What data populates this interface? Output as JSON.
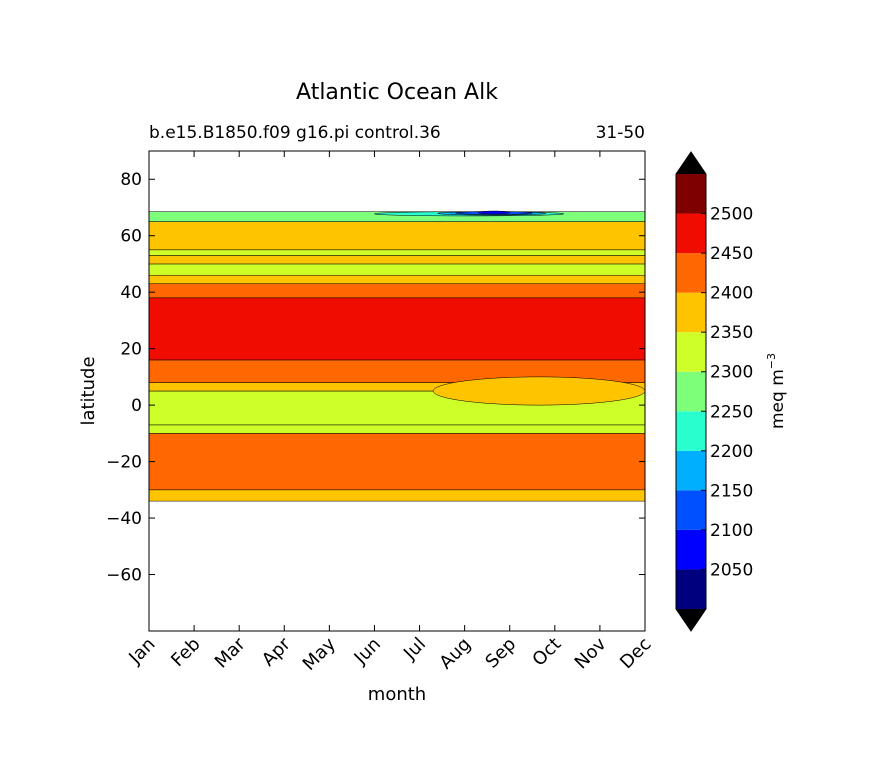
{
  "chart_data": {
    "type": "heatmap",
    "title": "Atlantic Ocean Alk",
    "subtitle_left": "b.e15.B1850.f09 g16.pi control.36",
    "subtitle_right": "31-50",
    "xlabel": "month",
    "ylabel": "latitude",
    "x_ticks": [
      "Jan",
      "Feb",
      "Mar",
      "Apr",
      "May",
      "Jun",
      "Jul",
      "Aug",
      "Sep",
      "Oct",
      "Nov",
      "Dec"
    ],
    "ylim": [
      -80,
      90
    ],
    "y_ticks": [
      80,
      60,
      40,
      20,
      0,
      -20,
      -40,
      -60
    ],
    "y_tick_labels": [
      "80",
      "60",
      "40",
      "20",
      "0",
      "−20",
      "−40",
      "−60"
    ],
    "colorbar": {
      "label_base": "meq m",
      "label_exp": "−3",
      "levels": [
        2000,
        2050,
        2100,
        2150,
        2200,
        2250,
        2300,
        2350,
        2400,
        2450,
        2500,
        2550
      ],
      "tick_values": [
        2050,
        2100,
        2150,
        2200,
        2250,
        2300,
        2350,
        2400,
        2450,
        2500
      ],
      "tick_labels": [
        "2050",
        "2100",
        "2150",
        "2200",
        "2250",
        "2300",
        "2350",
        "2400",
        "2450",
        "2500"
      ],
      "colors": [
        "#00007f",
        "#0000ff",
        "#0050ff",
        "#00b0ff",
        "#29ffce",
        "#7dff7a",
        "#ceff29",
        "#ffc400",
        "#ff6800",
        "#f10c00",
        "#7f0000"
      ],
      "extend_color": "#000000"
    },
    "bands": [
      {
        "lat_min": -34,
        "lat_max": -30,
        "value": 2375
      },
      {
        "lat_min": -30,
        "lat_max": -10,
        "value": 2425
      },
      {
        "lat_min": -10,
        "lat_max": -7,
        "value": 2325
      },
      {
        "lat_min": -7,
        "lat_max": 5,
        "value": 2325
      },
      {
        "lat_min": 5,
        "lat_max": 8,
        "value": 2375
      },
      {
        "lat_min": 8,
        "lat_max": 16,
        "value": 2425
      },
      {
        "lat_min": 16,
        "lat_max": 38,
        "value": 2475
      },
      {
        "lat_min": 38,
        "lat_max": 43,
        "value": 2425
      },
      {
        "lat_min": 43,
        "lat_max": 46,
        "value": 2375
      },
      {
        "lat_min": 46,
        "lat_max": 50,
        "value": 2325
      },
      {
        "lat_min": 50,
        "lat_max": 53,
        "value": 2375
      },
      {
        "lat_min": 53,
        "lat_max": 55,
        "value": 2325
      },
      {
        "lat_min": 55,
        "lat_max": 65,
        "value": 2375
      },
      {
        "lat_min": 65,
        "lat_max": 68.5,
        "value": 2275
      }
    ],
    "features": [
      {
        "month_start": 6.3,
        "month_end": 11,
        "lat_min": 0,
        "lat_max": 10,
        "value": 2375
      },
      {
        "month_start": 5,
        "month_end": 9.2,
        "lat_min": 67,
        "lat_max": 68.5,
        "value": 2225
      },
      {
        "month_start": 6.4,
        "month_end": 8.8,
        "lat_min": 67.3,
        "lat_max": 68.5,
        "value": 2175
      },
      {
        "month_start": 6.8,
        "month_end": 8.5,
        "lat_min": 67.6,
        "lat_max": 68.5,
        "value": 2125
      },
      {
        "month_start": 7.3,
        "month_end": 8.0,
        "lat_min": 67.9,
        "lat_max": 68.5,
        "value": 2075
      }
    ]
  }
}
